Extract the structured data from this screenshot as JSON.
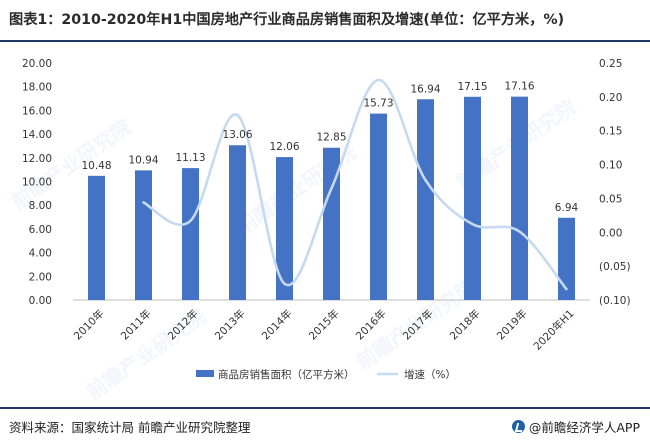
{
  "title": "图表1：2010-2020年H1中国房地产行业商品房销售面积及增速(单位：亿平方米，%)",
  "source": "资料来源：国家统计局 前瞻产业研究院整理",
  "brand": "@前瞻经济学人APP",
  "watermark": "前瞻产业研究院",
  "chart_data": {
    "type": "bar",
    "categories": [
      "2010年",
      "2011年",
      "2012年",
      "2013年",
      "2014年",
      "2015年",
      "2016年",
      "2017年",
      "2018年",
      "2019年",
      "2020年H1"
    ],
    "series": [
      {
        "name": "商品房销售面积（亿平方米）",
        "type": "bar",
        "axis": "left",
        "values": [
          10.48,
          10.94,
          11.13,
          13.06,
          12.06,
          12.85,
          15.73,
          16.94,
          17.15,
          17.16,
          6.94
        ],
        "labels": [
          "10.48",
          "10.94",
          "11.13",
          "13.06",
          "12.06",
          "12.85",
          "15.73",
          "16.94",
          "17.15",
          "17.16",
          "6.94"
        ],
        "color": "#4472c4"
      },
      {
        "name": "增速（%）",
        "type": "line",
        "axis": "right",
        "values": [
          null,
          0.044,
          0.017,
          0.173,
          -0.076,
          0.065,
          0.225,
          0.077,
          0.012,
          0.001,
          -0.084
        ],
        "color": "#c5d9f1"
      }
    ],
    "y_left": {
      "ylim": [
        0,
        20
      ],
      "ticks": [
        "0.00",
        "2.00",
        "4.00",
        "6.00",
        "8.00",
        "10.00",
        "12.00",
        "14.00",
        "16.00",
        "18.00",
        "20.00"
      ]
    },
    "y_right": {
      "ylim": [
        -0.1,
        0.25
      ],
      "ticks": [
        "(0.10)",
        "(0.05)",
        "0.00",
        "0.05",
        "0.10",
        "0.15",
        "0.20",
        "0.25"
      ]
    },
    "grid": false,
    "legend": "bottom"
  }
}
